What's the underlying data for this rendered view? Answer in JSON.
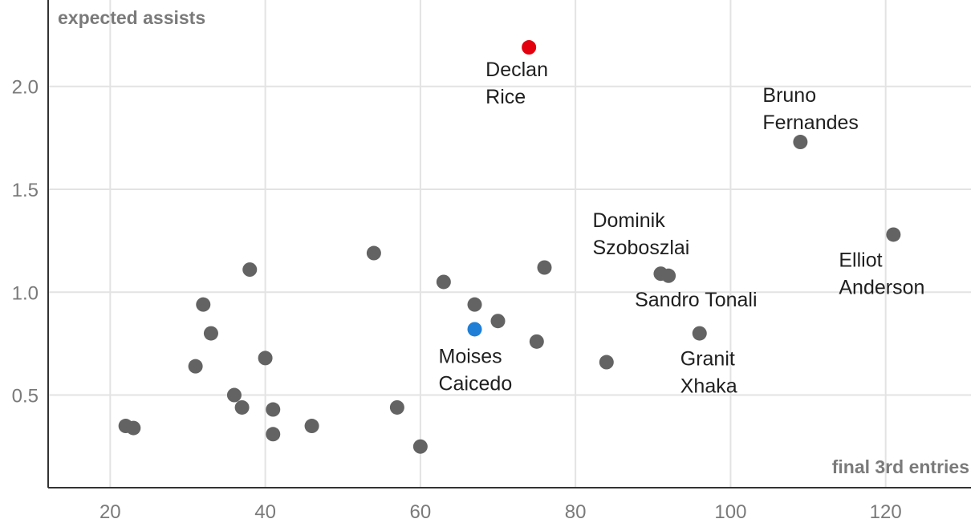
{
  "chart_data": {
    "type": "scatter",
    "title": "",
    "xlabel": "final 3rd entries",
    "ylabel": "expected assists",
    "xlim": [
      12,
      131
    ],
    "ylim": [
      0.05,
      2.42
    ],
    "xticks": [
      20,
      40,
      60,
      80,
      100,
      120
    ],
    "yticks": [
      0.5,
      1.0,
      1.5,
      2.0
    ],
    "ytick_labels": [
      "0.5",
      "1.0",
      "1.5",
      "2.0"
    ],
    "grid": true,
    "colors": {
      "default": "#636363",
      "highlight_red": "#e3000f",
      "highlight_blue": "#1f7fd6"
    },
    "points": [
      {
        "x": 74,
        "y": 2.19,
        "label": [
          "Declan",
          "Rice"
        ],
        "color": "highlight_red"
      },
      {
        "x": 109,
        "y": 1.73,
        "label": [
          "Bruno",
          "Fernandes"
        ],
        "color": "default"
      },
      {
        "x": 121,
        "y": 1.28,
        "label": [
          "Elliot",
          "Anderson"
        ],
        "color": "default"
      },
      {
        "x": 91,
        "y": 1.09,
        "label": [
          "Dominik",
          "Szoboszlai"
        ],
        "color": "default"
      },
      {
        "x": 92,
        "y": 1.08,
        "label": [
          "Sandro Tonali"
        ],
        "color": "default"
      },
      {
        "x": 96,
        "y": 0.8,
        "label": [
          "Granit",
          "Xhaka"
        ],
        "color": "default"
      },
      {
        "x": 67,
        "y": 0.82,
        "label": [
          "Moises",
          "Caicedo"
        ],
        "color": "highlight_blue"
      },
      {
        "x": 54,
        "y": 1.19,
        "color": "default"
      },
      {
        "x": 76,
        "y": 1.12,
        "color": "default"
      },
      {
        "x": 38,
        "y": 1.11,
        "color": "default"
      },
      {
        "x": 63,
        "y": 1.05,
        "color": "default"
      },
      {
        "x": 32,
        "y": 0.94,
        "color": "default"
      },
      {
        "x": 67,
        "y": 0.94,
        "color": "default"
      },
      {
        "x": 70,
        "y": 0.86,
        "color": "default"
      },
      {
        "x": 33,
        "y": 0.8,
        "color": "default"
      },
      {
        "x": 75,
        "y": 0.76,
        "color": "default"
      },
      {
        "x": 40,
        "y": 0.68,
        "color": "default"
      },
      {
        "x": 84,
        "y": 0.66,
        "color": "default"
      },
      {
        "x": 31,
        "y": 0.64,
        "color": "default"
      },
      {
        "x": 36,
        "y": 0.5,
        "color": "default"
      },
      {
        "x": 37,
        "y": 0.44,
        "color": "default"
      },
      {
        "x": 57,
        "y": 0.44,
        "color": "default"
      },
      {
        "x": 41,
        "y": 0.43,
        "color": "default"
      },
      {
        "x": 22,
        "y": 0.35,
        "color": "default"
      },
      {
        "x": 23,
        "y": 0.34,
        "color": "default"
      },
      {
        "x": 46,
        "y": 0.35,
        "color": "default"
      },
      {
        "x": 41,
        "y": 0.31,
        "color": "default"
      },
      {
        "x": 60,
        "y": 0.25,
        "color": "default"
      }
    ]
  }
}
